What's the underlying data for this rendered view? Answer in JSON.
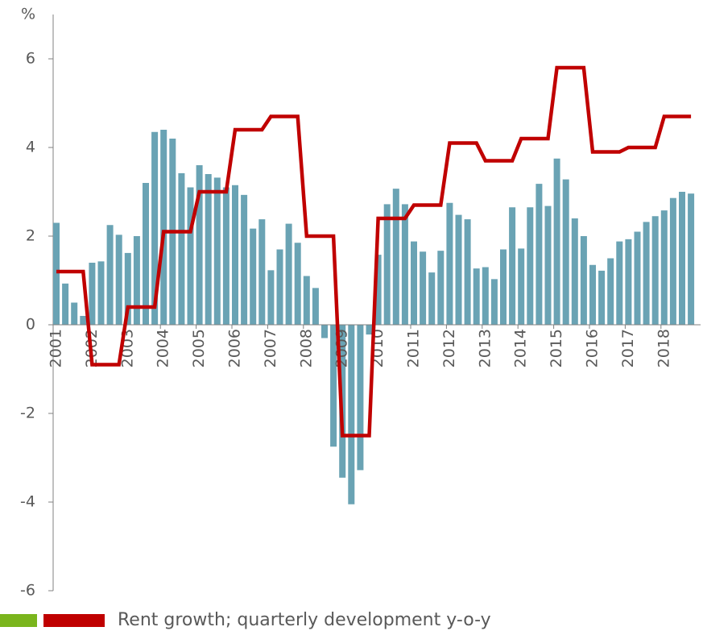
{
  "chart_data": {
    "type": "bar-line",
    "y_label": "%",
    "ylim": [
      -6,
      7
    ],
    "yticks": [
      -6,
      -4,
      -2,
      0,
      2,
      4,
      6
    ],
    "categories": [
      "2001",
      null,
      null,
      null,
      "2002",
      null,
      null,
      null,
      "2003",
      null,
      null,
      null,
      "2004",
      null,
      null,
      null,
      "2005",
      null,
      null,
      null,
      "2006",
      null,
      null,
      null,
      "2007",
      null,
      null,
      null,
      "2008",
      null,
      null,
      null,
      "2009",
      null,
      null,
      null,
      "2010",
      null,
      null,
      null,
      "2011",
      null,
      null,
      null,
      "2012",
      null,
      null,
      null,
      "2013",
      null,
      null,
      null,
      "2014",
      null,
      null,
      null,
      "2015",
      null,
      null,
      null,
      "2016",
      null,
      null,
      null,
      "2017",
      null,
      null,
      null,
      "2018",
      null,
      null,
      null
    ],
    "series": [
      {
        "type": "bar",
        "color": "#6aa3b4",
        "values": [
          2.3,
          0.93,
          0.5,
          0.2,
          1.4,
          1.43,
          2.25,
          2.03,
          1.62,
          2.0,
          3.2,
          4.35,
          4.4,
          4.2,
          3.42,
          3.1,
          3.6,
          3.4,
          3.32,
          3.1,
          3.15,
          2.93,
          2.17,
          2.38,
          1.23,
          1.7,
          2.28,
          1.85,
          1.1,
          0.83,
          -0.3,
          -2.75,
          -3.45,
          -4.05,
          -3.28,
          -0.22,
          1.58,
          2.72,
          3.07,
          2.72,
          1.88,
          1.65,
          1.18,
          1.67,
          2.75,
          2.48,
          2.38,
          1.27,
          1.3,
          1.03,
          1.7,
          2.65,
          1.72,
          2.65,
          3.18,
          2.68,
          3.75,
          3.28,
          2.4,
          2.0,
          1.35,
          1.22,
          1.5,
          1.88,
          1.93,
          2.1,
          2.32,
          2.45,
          2.58,
          2.86,
          3.0,
          2.96
        ]
      },
      {
        "type": "line",
        "name": "Rent growth; quarterly development y-o-y",
        "color": "#c00000",
        "values": [
          1.2,
          1.2,
          1.2,
          1.2,
          -0.9,
          -0.9,
          -0.9,
          -0.9,
          0.4,
          0.4,
          0.4,
          0.4,
          2.1,
          2.1,
          2.1,
          2.1,
          3.0,
          3.0,
          3.0,
          3.0,
          4.4,
          4.4,
          4.4,
          4.4,
          4.7,
          4.7,
          4.7,
          4.7,
          2.0,
          2.0,
          2.0,
          2.0,
          -2.5,
          -2.5,
          -2.5,
          -2.5,
          2.4,
          2.4,
          2.4,
          2.4,
          2.7,
          2.7,
          2.7,
          2.7,
          4.1,
          4.1,
          4.1,
          4.1,
          3.7,
          3.7,
          3.7,
          3.7,
          4.2,
          4.2,
          4.2,
          4.2,
          5.8,
          5.8,
          5.8,
          5.8,
          3.9,
          3.9,
          3.9,
          3.9,
          4.0,
          4.0,
          4.0,
          4.0,
          4.7,
          4.7,
          4.7,
          4.7
        ]
      }
    ]
  }
}
